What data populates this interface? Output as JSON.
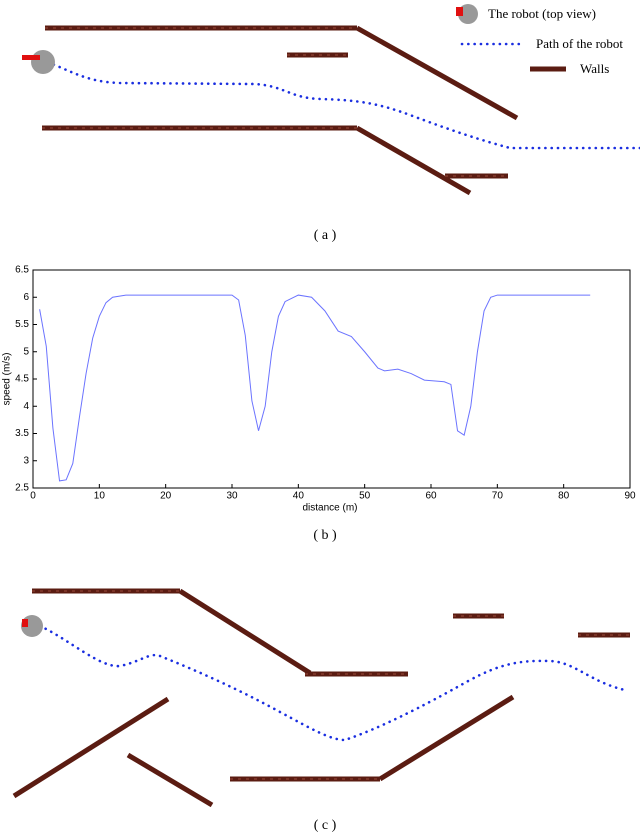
{
  "panel_a": {
    "caption": "( a )",
    "legend": [
      "The robot (top view)",
      "Path of the robot",
      "Walls"
    ]
  },
  "chart_data": {
    "type": "line",
    "caption": "( b )",
    "x_label": "distance (m)",
    "y_label": "speed (m/s)",
    "x": [
      1,
      2,
      3,
      4,
      5,
      6,
      7,
      8,
      9,
      10,
      11,
      12,
      14,
      20,
      25,
      30,
      31,
      32,
      33,
      34,
      35,
      36,
      37,
      38,
      40,
      42,
      44,
      46,
      48,
      50,
      52,
      53,
      55,
      57,
      59,
      62,
      63,
      64,
      65,
      66,
      67,
      68,
      69,
      70,
      75,
      80,
      84
    ],
    "values": [
      5.78,
      5.1,
      3.6,
      2.63,
      2.65,
      2.95,
      3.8,
      4.6,
      5.25,
      5.65,
      5.9,
      6.0,
      6.04,
      6.04,
      6.04,
      6.04,
      5.95,
      5.3,
      4.1,
      3.55,
      4.0,
      5.0,
      5.65,
      5.92,
      6.04,
      6.0,
      5.75,
      5.38,
      5.28,
      5.0,
      4.7,
      4.65,
      4.68,
      4.6,
      4.48,
      4.45,
      4.4,
      3.55,
      3.47,
      4.0,
      5.0,
      5.75,
      6.0,
      6.04,
      6.04,
      6.04,
      6.04
    ],
    "color": "#6b73ff",
    "xlim": [
      0,
      90
    ],
    "xticks": [
      0,
      10,
      20,
      30,
      40,
      50,
      60,
      70,
      80,
      90
    ],
    "ylim": [
      2.5,
      6.5
    ],
    "yticks": [
      2.5,
      3,
      3.5,
      4,
      4.5,
      5,
      5.5,
      6,
      6.5
    ]
  },
  "panel_c": {
    "caption": "( c )"
  }
}
